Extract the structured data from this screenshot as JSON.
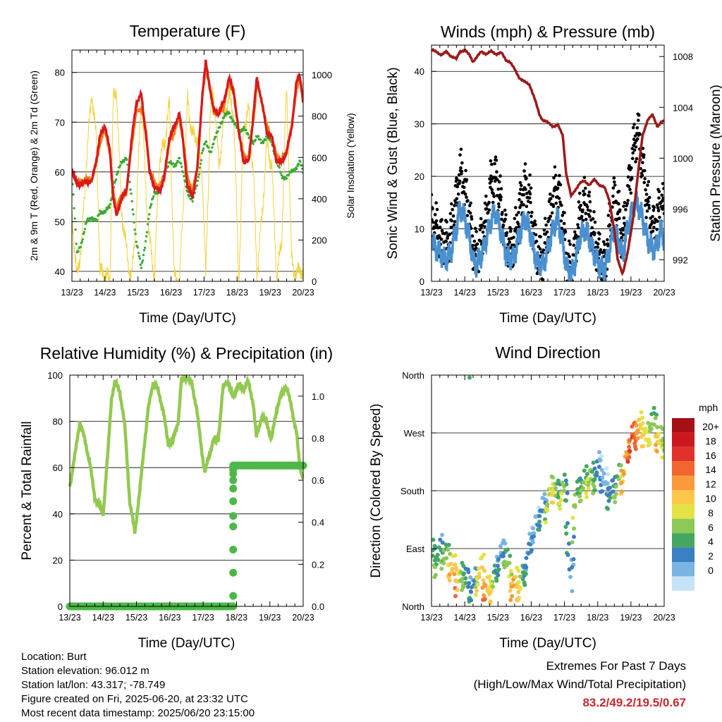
{
  "colors": {
    "temp_red": "#d7191c",
    "temp_orange": "#f07d1e",
    "dewpoint_green": "#3aaa35",
    "solar_yellow": "#f3d33b",
    "wind_blue": "#4a90d0",
    "gust_black": "#000000",
    "pressure_maroon": "#9b1b1b",
    "rh_green": "#92c950",
    "rain_green": "#4db848",
    "extremes_red": "#c8282e"
  },
  "time_ticks": [
    "13/23",
    "14/23",
    "15/23",
    "16/23",
    "17/23",
    "18/23",
    "19/23",
    "20/23"
  ],
  "info": {
    "location": "Location: Burt",
    "elevation": "Station elevation: 96.012 m",
    "latlon": "Station lat/lon: 43.317; -78.749",
    "created": "Figure created on Fri, 2025-06-20, at 23:32 UTC",
    "recent": "Most recent data timestamp: 2025/06/20 23:15:00"
  },
  "extremes": {
    "title": "Extremes For Past 7 Days",
    "subtitle": "(High/Low/Max Wind/Total Precipitation)",
    "value": "83.2/49.2/19.5/0.67"
  },
  "chart_data": [
    {
      "id": "temperature",
      "type": "line",
      "title": "Temperature (F)",
      "xlabel": "Time (Day/UTC)",
      "ylabel": "2m & 9m T (Red, Orange) & 2m Td (Green)",
      "ylabel_right": "Solar Insolation (Yellow)",
      "xlim": [
        0,
        7
      ],
      "ylim": [
        38,
        84.5
      ],
      "ylim_right": [
        0,
        1120
      ],
      "yticks": [
        40,
        50,
        60,
        70,
        80
      ],
      "yticks_right": [
        0,
        200,
        400,
        600,
        800,
        1000
      ],
      "grid": true,
      "x": [
        0.0,
        0.15,
        0.3,
        0.45,
        0.6,
        0.75,
        0.85,
        1.0,
        1.15,
        1.25,
        1.35,
        1.5,
        1.65,
        1.8,
        1.95,
        2.1,
        2.25,
        2.35,
        2.5,
        2.65,
        2.8,
        2.95,
        3.1,
        3.25,
        3.35,
        3.5,
        3.65,
        3.8,
        3.95,
        4.05,
        4.2,
        4.3,
        4.45,
        4.6,
        4.75,
        4.9,
        5.05,
        5.2,
        5.35,
        5.5,
        5.6,
        5.75,
        5.9,
        6.05,
        6.2,
        6.35,
        6.5,
        6.65,
        6.8,
        6.9,
        7.0
      ],
      "series": [
        {
          "name": "2m T",
          "values": [
            60.5,
            57.5,
            57.5,
            58,
            58,
            63,
            67,
            69.5,
            64,
            55,
            51,
            55,
            56,
            66,
            74,
            75.5,
            67,
            60,
            57,
            56,
            59,
            67,
            69,
            72,
            67,
            57,
            55,
            61,
            76,
            82,
            76,
            72,
            72,
            74,
            79,
            76,
            68,
            62,
            62,
            72,
            79,
            74,
            68,
            67,
            62,
            62,
            64,
            69,
            78,
            79.5,
            74
          ]
        },
        {
          "name": "9m T",
          "values": [
            60,
            58,
            58,
            58.5,
            58.5,
            62,
            66,
            68.5,
            64,
            56,
            53,
            55,
            56,
            65,
            72,
            73,
            68,
            60,
            58,
            57,
            59,
            66,
            68,
            71,
            67,
            59,
            56,
            61,
            75,
            81,
            76,
            72,
            72,
            73,
            78,
            76,
            68,
            63,
            63,
            71,
            78,
            74,
            69,
            67,
            63,
            62.5,
            64,
            69,
            77,
            78.5,
            74
          ]
        },
        {
          "name": "2m Td",
          "values": [
            60,
            43.5,
            46,
            50,
            51,
            50,
            52,
            52,
            53,
            57,
            59,
            62,
            63,
            55,
            46,
            40.5,
            47,
            52,
            56,
            56,
            60,
            62,
            61,
            63,
            60,
            56,
            54,
            58,
            64,
            66,
            64,
            66,
            69,
            71,
            72,
            70,
            68,
            69,
            67,
            66,
            67,
            66,
            67,
            66,
            62,
            59,
            59,
            60,
            61,
            62,
            60
          ]
        },
        {
          "name": "Solar Insolation",
          "axis": "right",
          "values": [
            330,
            10,
            200,
            600,
            920,
            660,
            50,
            30,
            0,
            870,
            930,
            350,
            150,
            0,
            320,
            930,
            400,
            200,
            20,
            600,
            660,
            860,
            10,
            0,
            300,
            880,
            700,
            700,
            500,
            20,
            880,
            900,
            560,
            780,
            900,
            800,
            0,
            750,
            830,
            500,
            40,
            300,
            680,
            550,
            20,
            200,
            950,
            100,
            20,
            80,
            0
          ]
        }
      ]
    },
    {
      "id": "winds",
      "type": "scatter",
      "title": "Winds (mph) & Pressure (mb)",
      "xlabel": "Time (Day/UTC)",
      "ylabel": "Sonic Wind & Gust (Blue, Black)",
      "ylabel_right": "Station Pressure (Maroon)",
      "xlim": [
        0,
        7
      ],
      "ylim": [
        0,
        45
      ],
      "ylim_right": [
        990.3,
        1008.9
      ],
      "yticks": [
        0,
        10,
        20,
        30,
        40
      ],
      "yticks_right": [
        992,
        996,
        1000,
        1004,
        1008
      ],
      "grid": true,
      "x": [
        0.0,
        0.15,
        0.3,
        0.45,
        0.6,
        0.75,
        0.85,
        1.0,
        1.15,
        1.25,
        1.35,
        1.5,
        1.65,
        1.8,
        1.95,
        2.1,
        2.25,
        2.35,
        2.5,
        2.65,
        2.8,
        2.95,
        3.1,
        3.25,
        3.35,
        3.5,
        3.65,
        3.8,
        3.95,
        4.05,
        4.2,
        4.3,
        4.45,
        4.6,
        4.75,
        4.9,
        5.05,
        5.2,
        5.35,
        5.5,
        5.6,
        5.75,
        5.9,
        6.05,
        6.2,
        6.35,
        6.5,
        6.65,
        6.8,
        6.9,
        7.0
      ],
      "series": [
        {
          "name": "Wind",
          "values": [
            8,
            6,
            5,
            4,
            6,
            10,
            14,
            12,
            8,
            4,
            3,
            5,
            8,
            12,
            13,
            9,
            5,
            4,
            5,
            9,
            12,
            10,
            5,
            3,
            3,
            6,
            10,
            12,
            7,
            3,
            1,
            3,
            8,
            10,
            8,
            5,
            3,
            2,
            6,
            10,
            8,
            5,
            10,
            14,
            15,
            12,
            8,
            6,
            7,
            10,
            8
          ]
        },
        {
          "name": "Gust",
          "values": [
            12,
            10,
            8,
            7,
            10,
            16,
            21,
            18,
            12,
            7,
            5,
            8,
            12,
            19,
            20,
            14,
            8,
            6,
            8,
            14,
            18,
            16,
            8,
            4,
            5,
            10,
            16,
            18,
            12,
            5,
            2,
            5,
            12,
            15,
            13,
            8,
            5,
            3,
            10,
            16,
            14,
            8,
            16,
            24,
            29,
            22,
            15,
            10,
            12,
            16,
            13
          ]
        },
        {
          "name": "Pressure",
          "axis": "right",
          "values": [
            1008.5,
            1008.4,
            1008.1,
            1008.4,
            1008.0,
            1007.8,
            1008.4,
            1008.5,
            1008.1,
            1007.6,
            1007.9,
            1008.4,
            1008.2,
            1008.4,
            1008.2,
            1008.3,
            1007.7,
            1007.6,
            1007.0,
            1006.3,
            1006.0,
            1005.8,
            1004.7,
            1003.4,
            1003.0,
            1002.8,
            1002.5,
            1002.6,
            1001.8,
            998.8,
            997.0,
            997.4,
            998.0,
            998.2,
            997.9,
            998.3,
            997.9,
            997.7,
            996.7,
            994.3,
            992.0,
            990.9,
            992.5,
            995.0,
            998.5,
            1001.8,
            1003.0,
            1003.4,
            1002.5,
            1002.8,
            1002.9
          ]
        }
      ]
    },
    {
      "id": "humidity",
      "type": "line",
      "title": "Relative Humidity (%) & Precipitation (in)",
      "xlabel": "Time (Day/UTC)",
      "ylabel": "Percent & Total Rainfall",
      "xlim": [
        0,
        7
      ],
      "ylim": [
        0,
        100
      ],
      "ylim_right": [
        0,
        1.1
      ],
      "yticks": [
        0,
        20,
        40,
        60,
        80,
        100
      ],
      "yticks_right": [
        0.0,
        0.2,
        0.4,
        0.6,
        0.8,
        1.0
      ],
      "grid": true,
      "x": [
        0.0,
        0.15,
        0.3,
        0.45,
        0.6,
        0.75,
        0.85,
        1.0,
        1.15,
        1.25,
        1.35,
        1.5,
        1.65,
        1.8,
        1.95,
        2.1,
        2.25,
        2.35,
        2.5,
        2.65,
        2.8,
        2.95,
        3.1,
        3.25,
        3.35,
        3.5,
        3.65,
        3.8,
        3.95,
        4.05,
        4.2,
        4.3,
        4.45,
        4.6,
        4.75,
        4.9,
        5.05,
        5.2,
        5.35,
        5.5,
        5.6,
        5.75,
        5.9,
        6.05,
        6.2,
        6.35,
        6.5,
        6.65,
        6.8,
        6.9,
        7.0
      ],
      "series": [
        {
          "name": "Relative Humidity",
          "values": [
            52,
            65,
            80,
            72,
            62,
            47,
            45,
            40,
            68,
            90,
            97,
            93,
            78,
            45,
            32,
            50,
            72,
            85,
            97,
            93,
            85,
            70,
            72,
            80,
            98,
            99,
            97,
            86,
            68,
            58,
            66,
            72,
            72,
            95,
            97,
            90,
            96,
            94,
            97,
            88,
            73,
            82,
            80,
            72,
            85,
            92,
            95,
            86,
            75,
            60,
            56
          ]
        },
        {
          "name": "Total Rainfall",
          "axis": "right",
          "values": [
            0,
            0,
            0,
            0,
            0,
            0,
            0,
            0,
            0,
            0,
            0,
            0,
            0,
            0,
            0,
            0,
            0,
            0,
            0,
            0,
            0,
            0,
            0,
            0,
            0,
            0,
            0,
            0,
            0,
            0,
            0,
            0,
            0,
            0,
            0,
            0.67,
            0.67,
            0.67,
            0.67,
            0.67,
            0.67,
            0.67,
            0.67,
            0.67,
            0.67,
            0.67,
            0.67,
            0.67,
            0.67,
            0.67,
            0.67
          ]
        }
      ]
    },
    {
      "id": "direction",
      "type": "scatter",
      "title": "Wind Direction",
      "xlabel": "Time (Day/UTC)",
      "ylabel": "Direction (Colored By Speed)",
      "xlim": [
        0,
        7
      ],
      "ylim": [
        0,
        360
      ],
      "yticks": [
        0,
        90,
        180,
        270,
        360
      ],
      "yticklabels": [
        "North",
        "East",
        "South",
        "West",
        "North"
      ],
      "grid": true,
      "legend": {
        "title": "mph",
        "placement": "right",
        "labels": [
          "20+",
          "18",
          "16",
          "14",
          "12",
          "10",
          "8",
          "6",
          "4",
          "2",
          "0"
        ],
        "colors": [
          "#a50f15",
          "#cb181d",
          "#e0322a",
          "#f16530",
          "#fb9a3c",
          "#fdc84a",
          "#e4e244",
          "#8cc957",
          "#45a760",
          "#3a80c2",
          "#79b4e2",
          "#c6e4f7"
        ]
      },
      "x": [
        0.0,
        0.15,
        0.3,
        0.45,
        0.6,
        0.75,
        0.85,
        1.0,
        1.15,
        1.25,
        1.35,
        1.5,
        1.65,
        1.8,
        1.95,
        2.1,
        2.25,
        2.35,
        2.5,
        2.65,
        2.8,
        2.95,
        3.1,
        3.25,
        3.35,
        3.5,
        3.65,
        3.8,
        3.95,
        4.05,
        4.2,
        4.3,
        4.45,
        4.6,
        4.75,
        4.9,
        5.05,
        5.2,
        5.35,
        5.5,
        5.6,
        5.75,
        5.9,
        6.05,
        6.2,
        6.35,
        6.5,
        6.65,
        6.8,
        6.9,
        7.0
      ],
      "series": [
        {
          "name": "Direction",
          "values": [
            80,
            70,
            90,
            75,
            60,
            45,
            40,
            50,
            20,
            30,
            40,
            60,
            20,
            30,
            55,
            80,
            85,
            40,
            35,
            30,
            50,
            95,
            120,
            140,
            150,
            160,
            190,
            170,
            180,
            175,
            20,
            160,
            185,
            190,
            200,
            195,
            220,
            190,
            175,
            180,
            195,
            200,
            240,
            265,
            270,
            280,
            255,
            290,
            265,
            250,
            255
          ]
        },
        {
          "name": "Speed",
          "values": [
            7,
            6,
            5,
            8,
            12,
            14,
            9,
            6,
            4,
            3,
            8,
            12,
            14,
            10,
            4,
            3,
            6,
            10,
            13,
            11,
            4,
            3,
            2,
            4,
            3,
            8,
            11,
            6,
            9,
            5,
            3,
            8,
            6,
            7,
            9,
            6,
            3,
            2,
            4,
            6,
            7,
            12,
            15,
            17,
            14,
            10,
            11,
            6,
            12,
            10,
            7
          ]
        }
      ]
    }
  ]
}
